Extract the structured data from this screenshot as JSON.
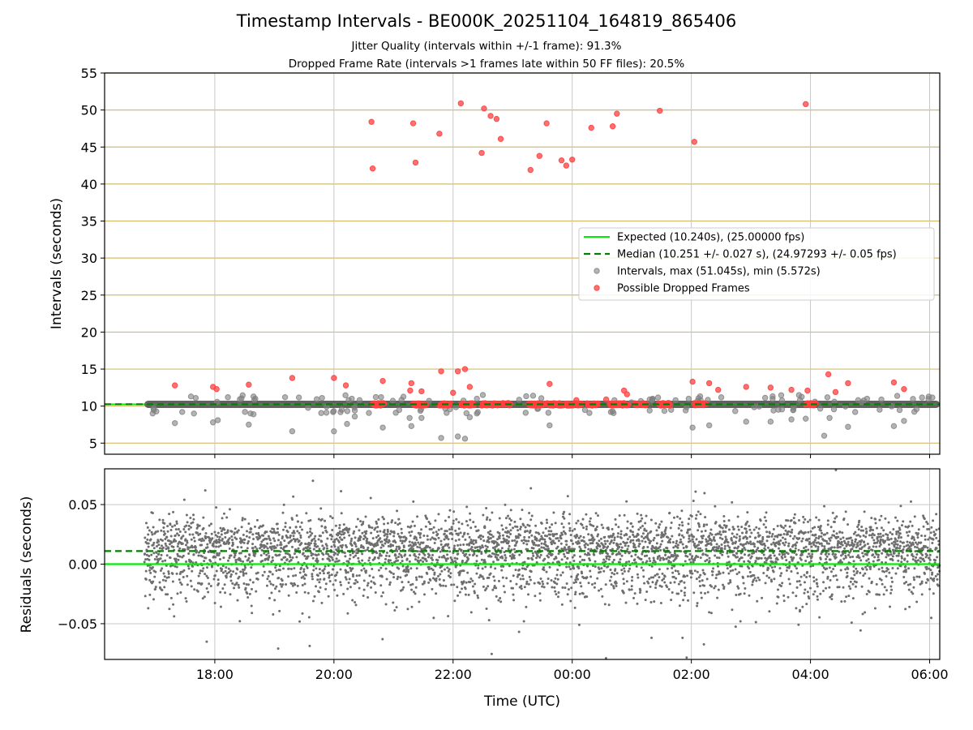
{
  "title": "Timestamp Intervals - BE000K_20251104_164819_865406",
  "subtitle1": "Jitter Quality (intervals within +/-1 frame): 91.3%",
  "subtitle2": "Dropped Frame Rate (intervals >1 frames late within 50 FF files): 20.5%",
  "colors": {
    "expected": "#00ee00",
    "median": "#008000",
    "intervals": "#808080",
    "dropped": "#ff4040",
    "hgrid": "#d4bc6a",
    "vgrid": "#c8c8c8"
  },
  "chart_data": [
    {
      "type": "scatter",
      "name": "intervals-panel",
      "title": "Timestamp Intervals - BE000K_20251104_164819_865406",
      "xlabel": "",
      "ylabel": "Intervals (seconds)",
      "x_unit": "hours since 2025-11-04 00:00 UTC",
      "xlim": [
        16.15,
        30.17
      ],
      "ylim": [
        3.5,
        55
      ],
      "yticks": [
        5,
        10,
        15,
        20,
        25,
        30,
        35,
        40,
        45,
        50,
        55
      ],
      "xticks": [
        18,
        20,
        22,
        24,
        26,
        28,
        30
      ],
      "legend_position": "center-right",
      "legend": [
        "Expected (10.240s), (25.00000 fps)",
        "Median (10.251 +/- 0.027 s), (24.97293 +/- 0.05 fps)",
        "Intervals, max (51.045s), min (5.572s)",
        "Possible Dropped Frames"
      ],
      "expected_value": 10.24,
      "median_value": 10.251,
      "baseline_interval": 10.24,
      "dense_start": 16.82,
      "dense_end": 30.17,
      "dropped_high": [
        {
          "x": 20.63,
          "y": 48.4
        },
        {
          "x": 20.65,
          "y": 42.1
        },
        {
          "x": 21.33,
          "y": 48.2
        },
        {
          "x": 21.37,
          "y": 42.9
        },
        {
          "x": 21.77,
          "y": 46.8
        },
        {
          "x": 22.13,
          "y": 50.9
        },
        {
          "x": 22.48,
          "y": 44.2
        },
        {
          "x": 22.52,
          "y": 50.2
        },
        {
          "x": 22.63,
          "y": 49.2
        },
        {
          "x": 22.73,
          "y": 48.8
        },
        {
          "x": 22.8,
          "y": 46.1
        },
        {
          "x": 23.3,
          "y": 41.9
        },
        {
          "x": 23.45,
          "y": 43.8
        },
        {
          "x": 23.57,
          "y": 48.2
        },
        {
          "x": 23.82,
          "y": 43.2
        },
        {
          "x": 24.0,
          "y": 43.3
        },
        {
          "x": 23.9,
          "y": 42.5
        },
        {
          "x": 24.32,
          "y": 47.6
        },
        {
          "x": 24.68,
          "y": 47.8
        },
        {
          "x": 24.75,
          "y": 49.5
        },
        {
          "x": 25.47,
          "y": 49.9
        },
        {
          "x": 26.05,
          "y": 45.7
        },
        {
          "x": 27.92,
          "y": 50.8
        }
      ],
      "dropped_low": [
        {
          "x": 17.33,
          "y": 12.8
        },
        {
          "x": 17.97,
          "y": 12.6
        },
        {
          "x": 18.03,
          "y": 12.3
        },
        {
          "x": 18.57,
          "y": 12.9
        },
        {
          "x": 19.3,
          "y": 13.8
        },
        {
          "x": 20.0,
          "y": 13.8
        },
        {
          "x": 20.2,
          "y": 12.8
        },
        {
          "x": 20.82,
          "y": 13.4
        },
        {
          "x": 21.3,
          "y": 13.1
        },
        {
          "x": 21.28,
          "y": 12.1
        },
        {
          "x": 21.47,
          "y": 12.0
        },
        {
          "x": 21.8,
          "y": 14.7
        },
        {
          "x": 22.0,
          "y": 11.8
        },
        {
          "x": 22.08,
          "y": 14.7
        },
        {
          "x": 22.2,
          "y": 15.0
        },
        {
          "x": 22.28,
          "y": 12.6
        },
        {
          "x": 23.62,
          "y": 13.0
        },
        {
          "x": 24.07,
          "y": 10.8
        },
        {
          "x": 24.57,
          "y": 10.9
        },
        {
          "x": 24.87,
          "y": 12.1
        },
        {
          "x": 24.92,
          "y": 11.6
        },
        {
          "x": 26.02,
          "y": 13.3
        },
        {
          "x": 26.3,
          "y": 13.1
        },
        {
          "x": 26.45,
          "y": 12.2
        },
        {
          "x": 26.92,
          "y": 12.6
        },
        {
          "x": 27.33,
          "y": 12.5
        },
        {
          "x": 27.68,
          "y": 12.2
        },
        {
          "x": 27.95,
          "y": 12.1
        },
        {
          "x": 28.3,
          "y": 14.3
        },
        {
          "x": 28.42,
          "y": 11.9
        },
        {
          "x": 28.63,
          "y": 13.1
        },
        {
          "x": 29.4,
          "y": 13.2
        },
        {
          "x": 29.57,
          "y": 12.3
        }
      ],
      "dropped_clusters": [
        {
          "x_from": 20.65,
          "x_to": 20.85
        },
        {
          "x_from": 21.33,
          "x_to": 21.55
        },
        {
          "x_from": 21.77,
          "x_to": 21.97
        },
        {
          "x_from": 22.13,
          "x_to": 22.35
        },
        {
          "x_from": 22.48,
          "x_to": 22.97
        },
        {
          "x_from": 23.27,
          "x_to": 24.17
        },
        {
          "x_from": 24.25,
          "x_to": 24.45
        },
        {
          "x_from": 24.63,
          "x_to": 24.95
        },
        {
          "x_from": 25.05,
          "x_to": 25.25
        },
        {
          "x_from": 25.45,
          "x_to": 25.65
        },
        {
          "x_from": 26.05,
          "x_to": 26.25
        },
        {
          "x_from": 27.92,
          "x_to": 28.1
        }
      ],
      "intervals_low": [
        {
          "x": 17.33,
          "y": 7.7
        },
        {
          "x": 17.97,
          "y": 7.8
        },
        {
          "x": 18.05,
          "y": 8.1
        },
        {
          "x": 18.57,
          "y": 7.5
        },
        {
          "x": 18.65,
          "y": 8.9
        },
        {
          "x": 19.3,
          "y": 6.6
        },
        {
          "x": 20.0,
          "y": 6.6
        },
        {
          "x": 20.22,
          "y": 7.6
        },
        {
          "x": 20.35,
          "y": 8.6
        },
        {
          "x": 20.82,
          "y": 7.1
        },
        {
          "x": 21.3,
          "y": 7.3
        },
        {
          "x": 21.27,
          "y": 8.4
        },
        {
          "x": 21.47,
          "y": 8.4
        },
        {
          "x": 21.8,
          "y": 5.7
        },
        {
          "x": 22.08,
          "y": 5.9
        },
        {
          "x": 22.2,
          "y": 5.6
        },
        {
          "x": 22.28,
          "y": 8.5
        },
        {
          "x": 23.62,
          "y": 7.4
        },
        {
          "x": 26.02,
          "y": 7.1
        },
        {
          "x": 26.3,
          "y": 7.4
        },
        {
          "x": 26.92,
          "y": 7.9
        },
        {
          "x": 27.33,
          "y": 7.9
        },
        {
          "x": 27.68,
          "y": 8.2
        },
        {
          "x": 27.92,
          "y": 8.3
        },
        {
          "x": 28.23,
          "y": 6.0
        },
        {
          "x": 28.32,
          "y": 8.4
        },
        {
          "x": 28.63,
          "y": 7.2
        },
        {
          "x": 29.4,
          "y": 7.3
        },
        {
          "x": 29.57,
          "y": 8.0
        }
      ],
      "intervals_mid": [
        {
          "x": 17.6,
          "y": 11.3
        },
        {
          "x": 17.68,
          "y": 11.1
        },
        {
          "x": 18.22,
          "y": 11.2
        },
        {
          "x": 18.65,
          "y": 11.3
        },
        {
          "x": 18.68,
          "y": 11.0
        },
        {
          "x": 19.8,
          "y": 11.1
        },
        {
          "x": 20.3,
          "y": 11.0
        },
        {
          "x": 20.43,
          "y": 10.8
        },
        {
          "x": 22.5,
          "y": 11.5
        },
        {
          "x": 22.4,
          "y": 11.0
        },
        {
          "x": 25.3,
          "y": 10.9
        },
        {
          "x": 25.35,
          "y": 11.0
        },
        {
          "x": 28.8,
          "y": 10.8
        },
        {
          "x": 28.95,
          "y": 11.0
        },
        {
          "x": 17.65,
          "y": 9.0
        },
        {
          "x": 18.6,
          "y": 9.0
        },
        {
          "x": 20.35,
          "y": 9.4
        },
        {
          "x": 22.4,
          "y": 9.0
        },
        {
          "x": 23.6,
          "y": 9.1
        },
        {
          "x": 24.65,
          "y": 9.2
        },
        {
          "x": 25.3,
          "y": 9.4
        },
        {
          "x": 28.75,
          "y": 9.2
        }
      ]
    },
    {
      "type": "scatter",
      "name": "residuals-panel",
      "xlabel": "Time (UTC)",
      "ylabel": "Residuals (seconds)",
      "x_unit": "hours since 2025-11-04 00:00 UTC",
      "xlim": [
        16.15,
        30.17
      ],
      "ylim": [
        -0.08,
        0.08
      ],
      "yticks": [
        -0.05,
        0.0,
        0.05
      ],
      "ytick_labels": [
        "−0.05",
        "0.00",
        "0.05"
      ],
      "xticks": [
        18,
        20,
        22,
        24,
        26,
        28,
        30
      ],
      "xtick_labels": [
        "18:00",
        "20:00",
        "22:00",
        "00:00",
        "02:00",
        "04:00",
        "06:00"
      ],
      "expected_value": 0.0,
      "median_value": 0.011,
      "point_count": 4200,
      "x_start": 16.82,
      "x_end": 30.17,
      "distribution": "bimodal around +0.018 and -0.008, spread ±0.05"
    }
  ]
}
